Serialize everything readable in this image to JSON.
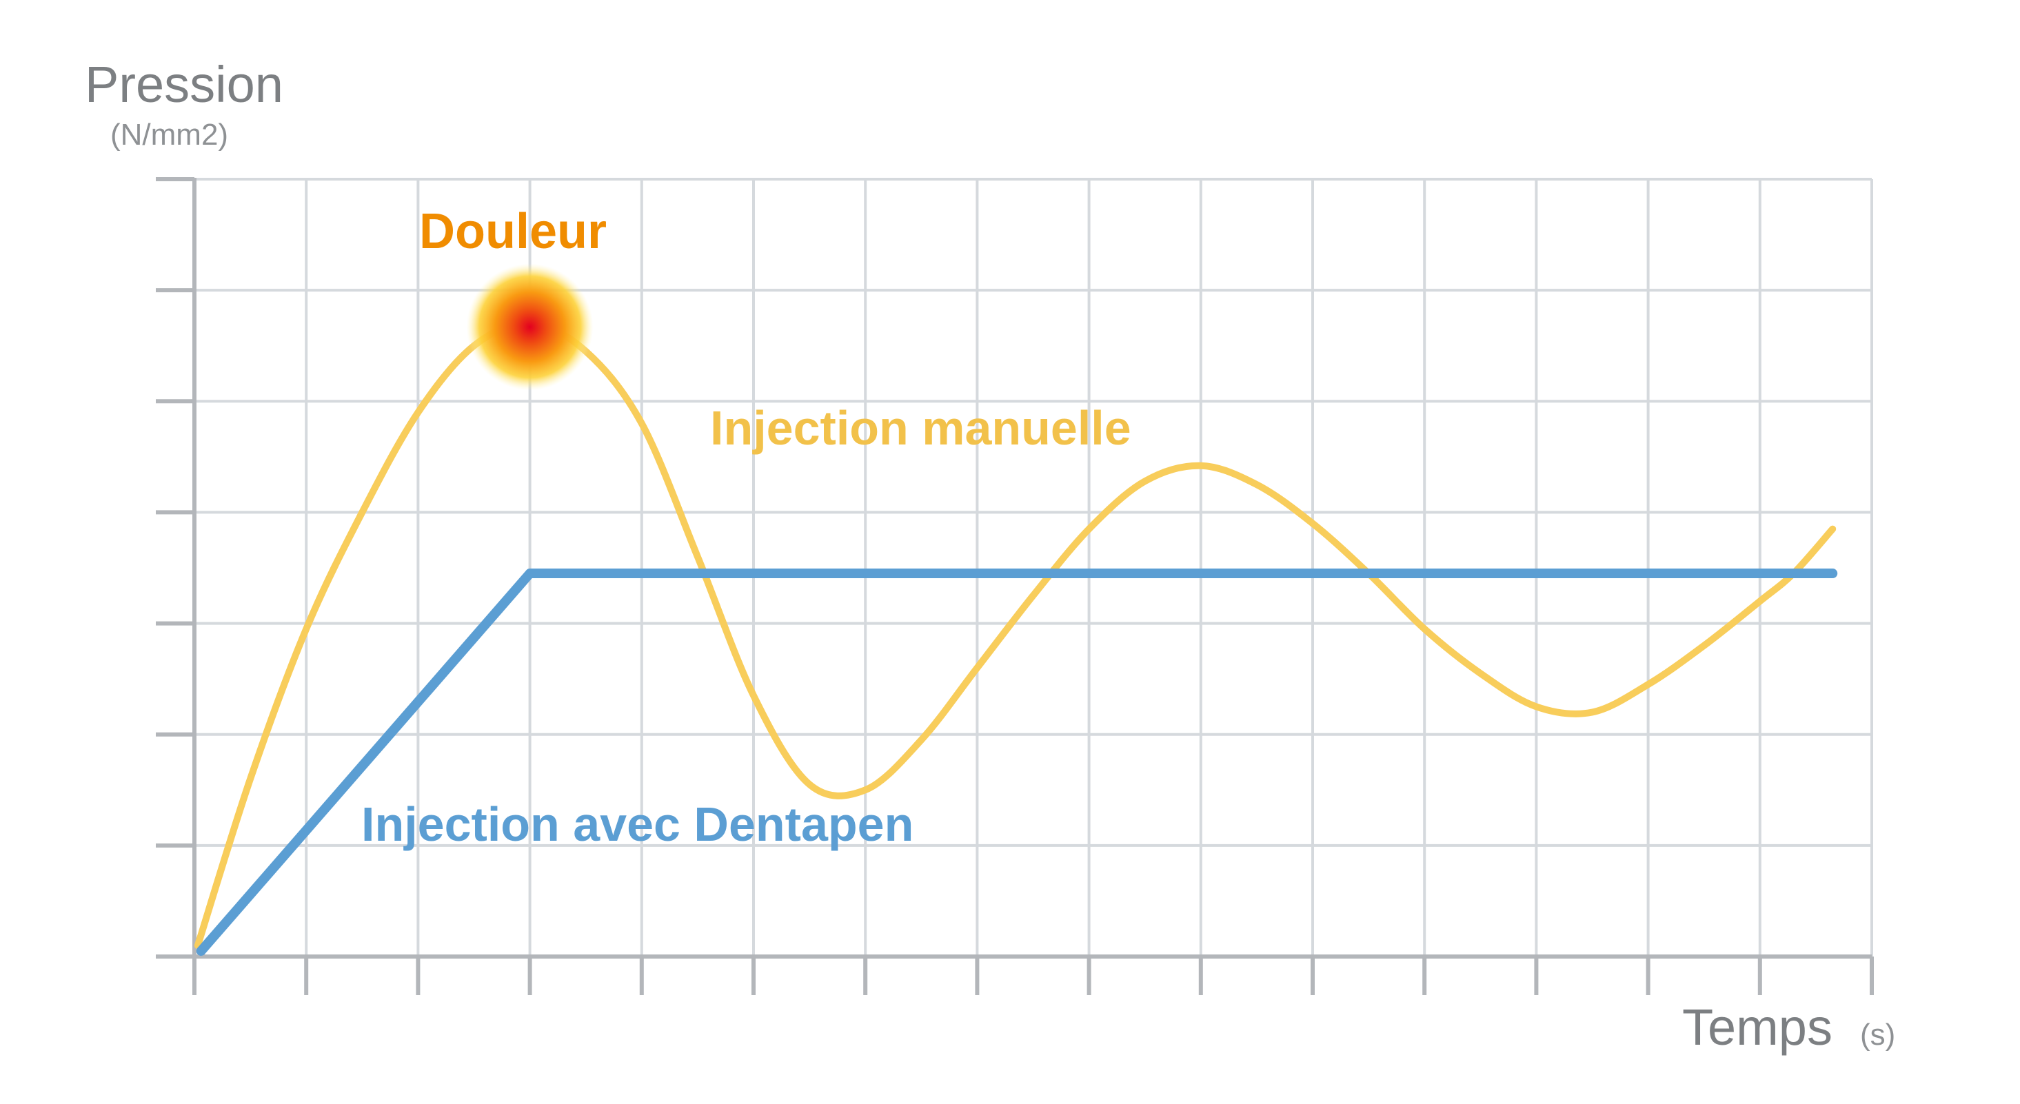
{
  "chart_data": {
    "type": "line",
    "ylabel": "Pression",
    "yunit": "(N/mm2)",
    "xlabel": "Temps",
    "xunit": "(s)",
    "xlim": [
      0,
      15
    ],
    "ylim": [
      0,
      7
    ],
    "grid": true,
    "series": [
      {
        "name": "Injection manuelle",
        "color": "#f8cd5b",
        "points": [
          [
            0.03,
            0.1
          ],
          [
            0.5,
            1.6
          ],
          [
            1.0,
            2.95
          ],
          [
            1.5,
            4.0
          ],
          [
            2.0,
            4.9
          ],
          [
            2.5,
            5.5
          ],
          [
            3.0,
            5.7
          ],
          [
            3.5,
            5.45
          ],
          [
            4.0,
            4.8
          ],
          [
            4.5,
            3.6
          ],
          [
            5.0,
            2.35
          ],
          [
            5.5,
            1.55
          ],
          [
            6.0,
            1.5
          ],
          [
            6.5,
            1.95
          ],
          [
            7.0,
            2.6
          ],
          [
            7.5,
            3.25
          ],
          [
            8.0,
            3.85
          ],
          [
            8.5,
            4.28
          ],
          [
            9.0,
            4.42
          ],
          [
            9.5,
            4.25
          ],
          [
            10.0,
            3.9
          ],
          [
            10.5,
            3.45
          ],
          [
            11.0,
            2.95
          ],
          [
            11.5,
            2.55
          ],
          [
            12.0,
            2.25
          ],
          [
            12.5,
            2.2
          ],
          [
            13.0,
            2.45
          ],
          [
            13.5,
            2.8
          ],
          [
            14.0,
            3.2
          ],
          [
            14.3,
            3.45
          ],
          [
            14.65,
            3.85
          ]
        ]
      },
      {
        "name": "Injection avec Dentapen",
        "color": "#5b9ed3",
        "points": [
          [
            0.06,
            0.05
          ],
          [
            3.0,
            3.45
          ],
          [
            14.65,
            3.45
          ]
        ]
      }
    ],
    "annotations": [
      {
        "label": "Douleur",
        "x": 3.0,
        "y": 5.7,
        "color": "#f08c00"
      }
    ]
  }
}
